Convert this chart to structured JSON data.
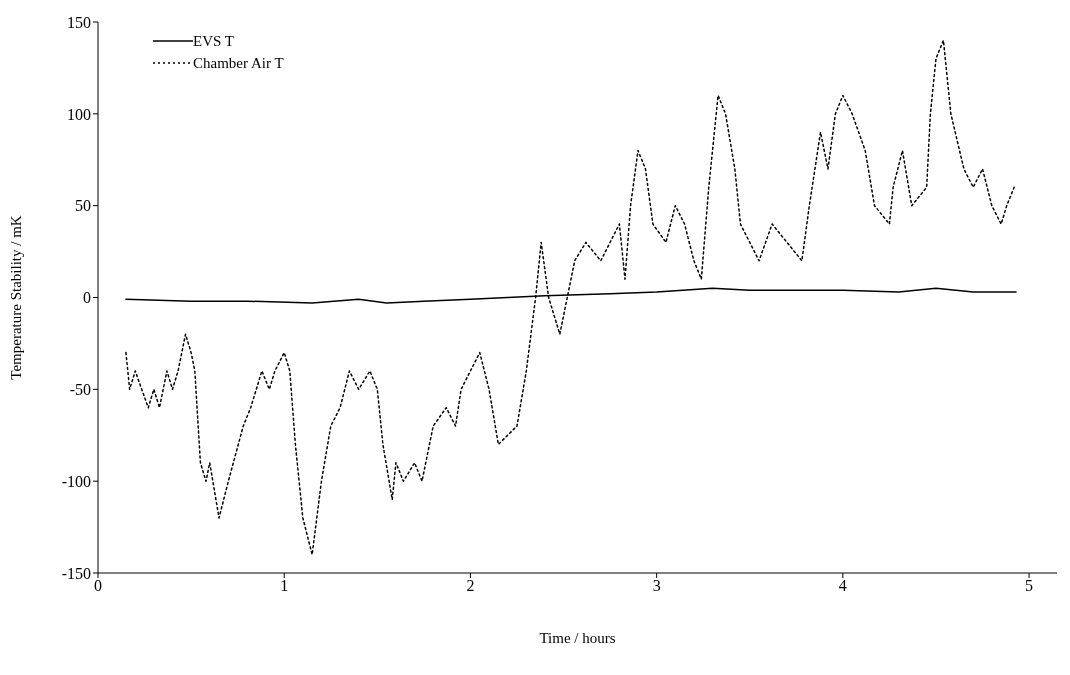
{
  "chart_data": {
    "type": "line",
    "xlabel": "Time / hours",
    "ylabel": "Temperature Stability / mK",
    "xlim": [
      0,
      5.15
    ],
    "xticks": [
      0,
      1,
      2,
      3,
      4,
      5
    ],
    "ylim": [
      -150,
      150
    ],
    "yticks": [
      -150,
      -100,
      -50,
      0,
      50,
      100,
      150
    ],
    "legend": "top left",
    "marker": "none",
    "series": [
      {
        "name": "EVS T",
        "color": "#000000",
        "line_style": "solid",
        "x": [
          0.15,
          0.5,
          0.8,
          1.15,
          1.4,
          1.55,
          1.75,
          2.0,
          2.2,
          2.4,
          2.75,
          3.0,
          3.3,
          3.5,
          4.0,
          4.3,
          4.5,
          4.7,
          4.93
        ],
        "values": [
          -1,
          -2,
          -2,
          -3,
          -1,
          -3,
          -2,
          -1,
          0,
          1,
          2,
          3,
          5,
          4,
          4,
          3,
          5,
          3,
          3
        ]
      },
      {
        "name": "Chamber Air T",
        "color": "#000000",
        "line_style": "dotted",
        "x": [
          0.15,
          0.17,
          0.2,
          0.27,
          0.3,
          0.33,
          0.37,
          0.4,
          0.43,
          0.47,
          0.5,
          0.52,
          0.55,
          0.58,
          0.6,
          0.65,
          0.7,
          0.78,
          0.82,
          0.88,
          0.92,
          0.95,
          1.0,
          1.03,
          1.06,
          1.1,
          1.15,
          1.2,
          1.25,
          1.3,
          1.35,
          1.4,
          1.46,
          1.5,
          1.53,
          1.58,
          1.6,
          1.64,
          1.7,
          1.74,
          1.8,
          1.87,
          1.92,
          1.95,
          2.0,
          2.05,
          2.1,
          2.15,
          2.25,
          2.3,
          2.35,
          2.38,
          2.42,
          2.48,
          2.52,
          2.56,
          2.62,
          2.7,
          2.75,
          2.8,
          2.83,
          2.86,
          2.9,
          2.94,
          2.98,
          3.05,
          3.1,
          3.15,
          3.2,
          3.24,
          3.28,
          3.33,
          3.37,
          3.42,
          3.45,
          3.5,
          3.55,
          3.62,
          3.78,
          3.82,
          3.88,
          3.92,
          3.96,
          4.0,
          4.05,
          4.12,
          4.17,
          4.25,
          4.27,
          4.32,
          4.37,
          4.45,
          4.47,
          4.5,
          4.54,
          4.58,
          4.65,
          4.7,
          4.75,
          4.8,
          4.85,
          4.88,
          4.92
        ],
        "values": [
          -30,
          -50,
          -40,
          -60,
          -50,
          -60,
          -40,
          -50,
          -40,
          -20,
          -30,
          -40,
          -90,
          -100,
          -90,
          -120,
          -100,
          -70,
          -60,
          -40,
          -50,
          -40,
          -30,
          -40,
          -80,
          -120,
          -140,
          -100,
          -70,
          -60,
          -40,
          -50,
          -40,
          -50,
          -80,
          -110,
          -90,
          -100,
          -90,
          -100,
          -70,
          -60,
          -70,
          -50,
          -40,
          -30,
          -50,
          -80,
          -70,
          -40,
          0,
          30,
          0,
          -20,
          0,
          20,
          30,
          20,
          30,
          40,
          10,
          50,
          80,
          70,
          40,
          30,
          50,
          40,
          20,
          10,
          60,
          110,
          100,
          70,
          40,
          30,
          20,
          40,
          20,
          50,
          90,
          70,
          100,
          110,
          100,
          80,
          50,
          40,
          60,
          80,
          50,
          60,
          100,
          130,
          140,
          100,
          70,
          60,
          70,
          50,
          40,
          50,
          60
        ]
      }
    ]
  }
}
